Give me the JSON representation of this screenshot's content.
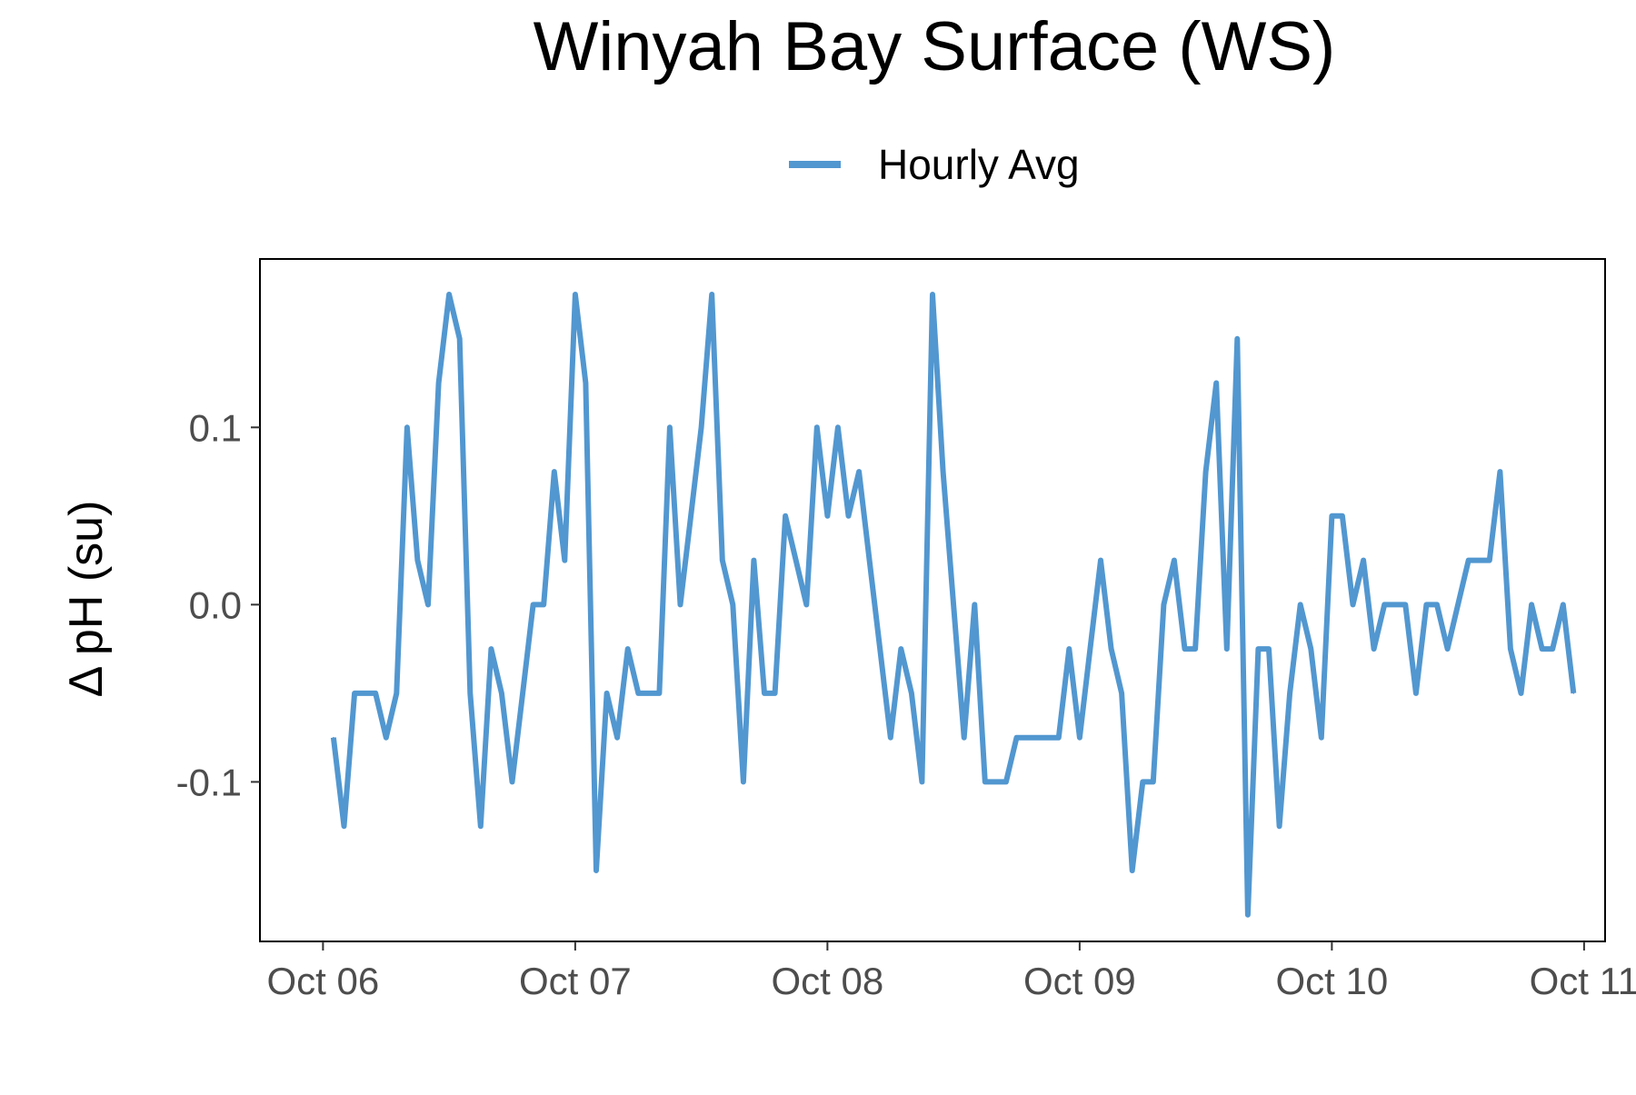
{
  "chart_data": {
    "type": "line",
    "title": "Winyah Bay Surface (WS)",
    "ylabel": "Δ pH (su)",
    "xlabel": "",
    "x_ticks": [
      "Oct 06",
      "Oct 07",
      "Oct 08",
      "Oct 09",
      "Oct 10",
      "Oct 11"
    ],
    "y_ticks": [
      "-0.1",
      "0.0",
      "0.1"
    ],
    "ylim": [
      -0.19,
      0.195
    ],
    "xlim": [
      "2023-10-05T18:00",
      "2023-10-11T02:00"
    ],
    "legend_position": "top-center",
    "grid": false,
    "series": [
      {
        "name": "Hourly Avg",
        "color": "#5297D0",
        "x": [
          "2023-10-06T01:00",
          "2023-10-06T02:00",
          "2023-10-06T03:00",
          "2023-10-06T04:00",
          "2023-10-06T05:00",
          "2023-10-06T06:00",
          "2023-10-06T07:00",
          "2023-10-06T08:00",
          "2023-10-06T09:00",
          "2023-10-06T10:00",
          "2023-10-06T11:00",
          "2023-10-06T12:00",
          "2023-10-06T13:00",
          "2023-10-06T14:00",
          "2023-10-06T15:00",
          "2023-10-06T16:00",
          "2023-10-06T17:00",
          "2023-10-06T18:00",
          "2023-10-06T19:00",
          "2023-10-06T20:00",
          "2023-10-06T21:00",
          "2023-10-06T22:00",
          "2023-10-06T23:00",
          "2023-10-07T00:00",
          "2023-10-07T01:00",
          "2023-10-07T02:00",
          "2023-10-07T03:00",
          "2023-10-07T04:00",
          "2023-10-07T05:00",
          "2023-10-07T06:00",
          "2023-10-07T07:00",
          "2023-10-07T08:00",
          "2023-10-07T09:00",
          "2023-10-07T10:00",
          "2023-10-07T11:00",
          "2023-10-07T12:00",
          "2023-10-07T13:00",
          "2023-10-07T14:00",
          "2023-10-07T15:00",
          "2023-10-07T16:00",
          "2023-10-07T17:00",
          "2023-10-07T18:00",
          "2023-10-07T19:00",
          "2023-10-07T20:00",
          "2023-10-07T21:00",
          "2023-10-07T22:00",
          "2023-10-07T23:00",
          "2023-10-08T00:00",
          "2023-10-08T01:00",
          "2023-10-08T02:00",
          "2023-10-08T03:00",
          "2023-10-08T04:00",
          "2023-10-08T05:00",
          "2023-10-08T06:00",
          "2023-10-08T07:00",
          "2023-10-08T08:00",
          "2023-10-08T09:00",
          "2023-10-08T10:00",
          "2023-10-08T11:00",
          "2023-10-08T12:00",
          "2023-10-08T13:00",
          "2023-10-08T14:00",
          "2023-10-08T15:00",
          "2023-10-08T16:00",
          "2023-10-08T17:00",
          "2023-10-08T18:00",
          "2023-10-08T19:00",
          "2023-10-08T20:00",
          "2023-10-08T21:00",
          "2023-10-08T22:00",
          "2023-10-08T23:00",
          "2023-10-09T00:00",
          "2023-10-09T01:00",
          "2023-10-09T02:00",
          "2023-10-09T03:00",
          "2023-10-09T04:00",
          "2023-10-09T05:00",
          "2023-10-09T06:00",
          "2023-10-09T07:00",
          "2023-10-09T08:00",
          "2023-10-09T09:00",
          "2023-10-09T10:00",
          "2023-10-09T11:00",
          "2023-10-09T12:00",
          "2023-10-09T13:00",
          "2023-10-09T14:00",
          "2023-10-09T15:00",
          "2023-10-09T16:00",
          "2023-10-09T17:00",
          "2023-10-09T18:00",
          "2023-10-09T19:00",
          "2023-10-09T20:00",
          "2023-10-09T21:00",
          "2023-10-09T22:00",
          "2023-10-09T23:00",
          "2023-10-10T00:00",
          "2023-10-10T01:00",
          "2023-10-10T02:00",
          "2023-10-10T03:00",
          "2023-10-10T04:00",
          "2023-10-10T05:00",
          "2023-10-10T06:00",
          "2023-10-10T07:00",
          "2023-10-10T08:00",
          "2023-10-10T09:00",
          "2023-10-10T10:00",
          "2023-10-10T11:00",
          "2023-10-10T12:00",
          "2023-10-10T13:00",
          "2023-10-10T14:00",
          "2023-10-10T15:00",
          "2023-10-10T16:00",
          "2023-10-10T17:00",
          "2023-10-10T18:00",
          "2023-10-10T19:00",
          "2023-10-10T20:00",
          "2023-10-10T21:00",
          "2023-10-10T22:00",
          "2023-10-10T23:00"
        ],
        "values": [
          -0.075,
          -0.125,
          -0.05,
          -0.05,
          -0.05,
          -0.075,
          -0.05,
          0.1,
          0.025,
          0.0,
          0.125,
          0.175,
          0.15,
          -0.05,
          -0.125,
          -0.025,
          -0.05,
          -0.1,
          -0.05,
          0.0,
          0.0,
          0.075,
          0.025,
          0.175,
          0.125,
          -0.15,
          -0.05,
          -0.075,
          -0.025,
          -0.05,
          -0.05,
          -0.05,
          0.1,
          0.0,
          0.05,
          0.1,
          0.175,
          0.025,
          0.0,
          -0.1,
          0.025,
          -0.05,
          -0.05,
          0.05,
          0.025,
          0.0,
          0.1,
          0.05,
          0.1,
          0.05,
          0.075,
          0.025,
          -0.025,
          -0.075,
          -0.025,
          -0.05,
          -0.1,
          0.175,
          0.075,
          0.0,
          -0.075,
          0.0,
          -0.1,
          -0.1,
          -0.1,
          -0.075,
          -0.075,
          -0.075,
          -0.075,
          -0.075,
          -0.025,
          -0.075,
          -0.025,
          0.025,
          -0.025,
          -0.05,
          -0.15,
          -0.1,
          -0.1,
          0.0,
          0.025,
          -0.025,
          -0.025,
          0.075,
          0.125,
          -0.025,
          0.15,
          -0.175,
          -0.025,
          -0.025,
          -0.125,
          -0.05,
          0.0,
          -0.025,
          -0.075,
          0.05,
          0.05,
          0.0,
          0.025,
          -0.025,
          0.0,
          0.0,
          0.0,
          -0.05,
          0.0,
          0.0,
          -0.025,
          0.0,
          0.025,
          0.025,
          0.025,
          0.075,
          -0.025,
          -0.05,
          0.0,
          -0.025,
          -0.025,
          0.0,
          -0.05
        ]
      }
    ]
  }
}
